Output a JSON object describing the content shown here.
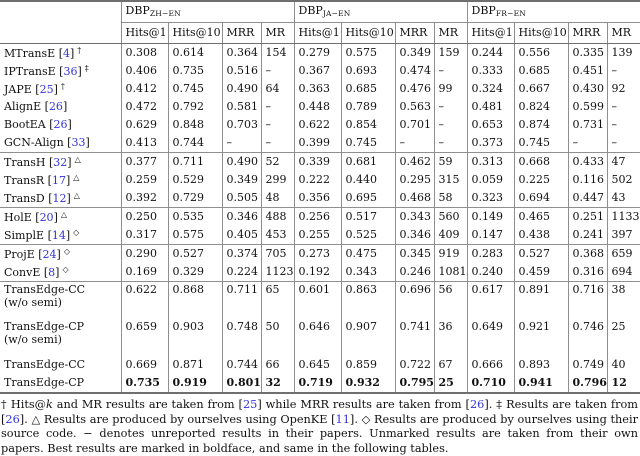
{
  "colors": {
    "citation_blue": "#3333dd"
  },
  "table": {
    "cite_brackets": [
      "[",
      "]"
    ],
    "col_groups": [
      {
        "name": "DBP",
        "subscript": "ZH−EN"
      },
      {
        "name": "DBP",
        "subscript": "JA−EN"
      },
      {
        "name": "DBP",
        "subscript": "FR−EN"
      }
    ],
    "metric_headers": [
      "Hits@1",
      "Hits@10",
      "MRR",
      "MR"
    ],
    "rows": [
      {
        "method": "MTransE",
        "cite": "4",
        "mark": "†",
        "line2": "",
        "bold": false,
        "rule_above": false,
        "values": [
          [
            "0.308",
            "0.614",
            "0.364",
            "154"
          ],
          [
            "0.279",
            "0.575",
            "0.349",
            "159"
          ],
          [
            "0.244",
            "0.556",
            "0.335",
            "139"
          ]
        ]
      },
      {
        "method": "IPTransE",
        "cite": "36",
        "mark": "‡",
        "line2": "",
        "bold": false,
        "rule_above": false,
        "values": [
          [
            "0.406",
            "0.735",
            "0.516",
            "–"
          ],
          [
            "0.367",
            "0.693",
            "0.474",
            "–"
          ],
          [
            "0.333",
            "0.685",
            "0.451",
            "–"
          ]
        ]
      },
      {
        "method": "JAPE",
        "cite": "25",
        "mark": "†",
        "line2": "",
        "bold": false,
        "rule_above": false,
        "values": [
          [
            "0.412",
            "0.745",
            "0.490",
            "64"
          ],
          [
            "0.363",
            "0.685",
            "0.476",
            "99"
          ],
          [
            "0.324",
            "0.667",
            "0.430",
            "92"
          ]
        ]
      },
      {
        "method": "AlignE",
        "cite": "26",
        "mark": "",
        "line2": "",
        "bold": false,
        "rule_above": false,
        "values": [
          [
            "0.472",
            "0.792",
            "0.581",
            "–"
          ],
          [
            "0.448",
            "0.789",
            "0.563",
            "–"
          ],
          [
            "0.481",
            "0.824",
            "0.599",
            "–"
          ]
        ]
      },
      {
        "method": "BootEA",
        "cite": "26",
        "mark": "",
        "line2": "",
        "bold": false,
        "rule_above": false,
        "values": [
          [
            "0.629",
            "0.848",
            "0.703",
            "–"
          ],
          [
            "0.622",
            "0.854",
            "0.701",
            "–"
          ],
          [
            "0.653",
            "0.874",
            "0.731",
            "–"
          ]
        ]
      },
      {
        "method": "GCN-Align",
        "cite": "33",
        "mark": "",
        "line2": "",
        "bold": false,
        "rule_above": false,
        "values": [
          [
            "0.413",
            "0.744",
            "–",
            "–"
          ],
          [
            "0.399",
            "0.745",
            "–",
            "–"
          ],
          [
            "0.373",
            "0.745",
            "–",
            "–"
          ]
        ]
      },
      {
        "method": "TransH",
        "cite": "32",
        "mark": "△",
        "line2": "",
        "bold": false,
        "rule_above": true,
        "values": [
          [
            "0.377",
            "0.711",
            "0.490",
            "52"
          ],
          [
            "0.339",
            "0.681",
            "0.462",
            "59"
          ],
          [
            "0.313",
            "0.668",
            "0.433",
            "47"
          ]
        ]
      },
      {
        "method": "TransR",
        "cite": "17",
        "mark": "△",
        "line2": "",
        "bold": false,
        "rule_above": false,
        "values": [
          [
            "0.259",
            "0.529",
            "0.349",
            "299"
          ],
          [
            "0.222",
            "0.440",
            "0.295",
            "315"
          ],
          [
            "0.059",
            "0.225",
            "0.116",
            "502"
          ]
        ]
      },
      {
        "method": "TransD",
        "cite": "12",
        "mark": "△",
        "line2": "",
        "bold": false,
        "rule_above": false,
        "values": [
          [
            "0.392",
            "0.729",
            "0.505",
            "48"
          ],
          [
            "0.356",
            "0.695",
            "0.468",
            "58"
          ],
          [
            "0.323",
            "0.694",
            "0.447",
            "43"
          ]
        ]
      },
      {
        "method": "HolE",
        "cite": "20",
        "mark": "△",
        "line2": "",
        "bold": false,
        "rule_above": true,
        "values": [
          [
            "0.250",
            "0.535",
            "0.346",
            "488"
          ],
          [
            "0.256",
            "0.517",
            "0.343",
            "560"
          ],
          [
            "0.149",
            "0.465",
            "0.251",
            "1133"
          ]
        ]
      },
      {
        "method": "SimplE",
        "cite": "14",
        "mark": "◇",
        "line2": "",
        "bold": false,
        "rule_above": false,
        "values": [
          [
            "0.317",
            "0.575",
            "0.405",
            "453"
          ],
          [
            "0.255",
            "0.525",
            "0.346",
            "409"
          ],
          [
            "0.147",
            "0.438",
            "0.241",
            "397"
          ]
        ]
      },
      {
        "method": "ProjE",
        "cite": "24",
        "mark": "◇",
        "line2": "",
        "bold": false,
        "rule_above": true,
        "values": [
          [
            "0.290",
            "0.527",
            "0.374",
            "705"
          ],
          [
            "0.273",
            "0.475",
            "0.345",
            "919"
          ],
          [
            "0.283",
            "0.527",
            "0.368",
            "659"
          ]
        ]
      },
      {
        "method": "ConvE",
        "cite": "8",
        "mark": "◇",
        "line2": "",
        "bold": false,
        "rule_above": false,
        "values": [
          [
            "0.169",
            "0.329",
            "0.224",
            "1123"
          ],
          [
            "0.192",
            "0.343",
            "0.246",
            "1081"
          ],
          [
            "0.240",
            "0.459",
            "0.316",
            "694"
          ]
        ]
      },
      {
        "method": "TransEdge-CC",
        "cite": "",
        "mark": "",
        "line2": "(w/o semi)",
        "bold": false,
        "rule_above": true,
        "values": [
          [
            "0.622",
            "0.868",
            "0.711",
            "65"
          ],
          [
            "0.601",
            "0.863",
            "0.696",
            "56"
          ],
          [
            "0.617",
            "0.891",
            "0.716",
            "38"
          ]
        ]
      },
      {
        "method": "TransEdge-CP",
        "cite": "",
        "mark": "",
        "line2": "(w/o semi)",
        "bold": false,
        "rule_above": false,
        "values": [
          [
            "0.659",
            "0.903",
            "0.748",
            "50"
          ],
          [
            "0.646",
            "0.907",
            "0.741",
            "36"
          ],
          [
            "0.649",
            "0.921",
            "0.746",
            "25"
          ]
        ]
      },
      {
        "method": "TransEdge-CC",
        "cite": "",
        "mark": "",
        "line2": "",
        "bold": false,
        "rule_above": false,
        "values": [
          [
            "0.669",
            "0.871",
            "0.744",
            "66"
          ],
          [
            "0.645",
            "0.859",
            "0.722",
            "67"
          ],
          [
            "0.666",
            "0.893",
            "0.749",
            "40"
          ]
        ]
      },
      {
        "method": "TransEdge-CP",
        "cite": "",
        "mark": "",
        "line2": "",
        "bold": true,
        "rule_above": false,
        "values": [
          [
            "0.735",
            "0.919",
            "0.801",
            "32"
          ],
          [
            "0.719",
            "0.932",
            "0.795",
            "25"
          ],
          [
            "0.710",
            "0.941",
            "0.796",
            "12"
          ]
        ]
      }
    ]
  },
  "footnote": {
    "segments": [
      {
        "t": "† Hits@"
      },
      {
        "i": "k"
      },
      {
        "t": " and MR results are taken from ["
      },
      {
        "c": "25"
      },
      {
        "t": "] while MRR results are taken from ["
      },
      {
        "c": "26"
      },
      {
        "t": "]. ‡ Results are taken from ["
      },
      {
        "c": "26"
      },
      {
        "t": "]. △ Results are produced by ourselves using OpenKE ["
      },
      {
        "c": "11"
      },
      {
        "t": "]. ◇ Results are produced by ourselves using their source code. − denotes unreported results in their papers. Unmarked results are taken from their own papers. Best results are marked in boldface, and same in the following tables."
      }
    ]
  }
}
